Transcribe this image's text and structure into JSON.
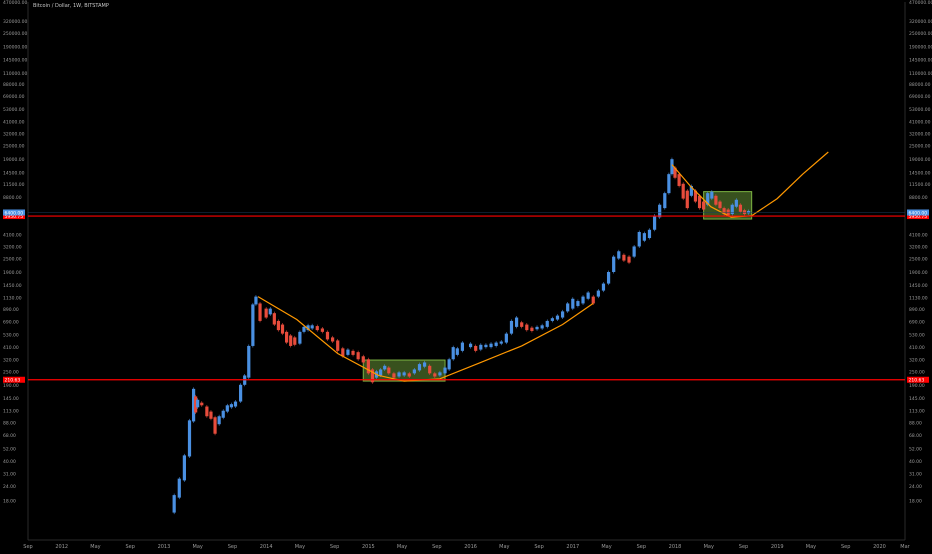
{
  "chart_data": {
    "type": "candlestick",
    "title": "Bitcoin / Dollar, 1W, BITSTAMP",
    "scale": "log",
    "ylim": [
      8,
      470000
    ],
    "y_ticks": [
      {
        "label": "470000.00",
        "value": 470000
      },
      {
        "label": "320000.00",
        "value": 320000
      },
      {
        "label": "250000.00",
        "value": 250000
      },
      {
        "label": "190000.00",
        "value": 190000
      },
      {
        "label": "145000.00",
        "value": 145000
      },
      {
        "label": "110000.00",
        "value": 110000
      },
      {
        "label": "88000.00",
        "value": 88000
      },
      {
        "label": "69000.00",
        "value": 69000
      },
      {
        "label": "53000.00",
        "value": 53000
      },
      {
        "label": "41000.00",
        "value": 41000
      },
      {
        "label": "32000.00",
        "value": 32000
      },
      {
        "label": "25000.00",
        "value": 25000
      },
      {
        "label": "19000.00",
        "value": 19000
      },
      {
        "label": "14500.00",
        "value": 14500
      },
      {
        "label": "11500.00",
        "value": 11500
      },
      {
        "label": "8800.00",
        "value": 8800
      },
      {
        "label": "4100.00",
        "value": 4100
      },
      {
        "label": "3200.00",
        "value": 3200
      },
      {
        "label": "2500.00",
        "value": 2500
      },
      {
        "label": "1900.00",
        "value": 1900
      },
      {
        "label": "1450.00",
        "value": 1450
      },
      {
        "label": "1130.00",
        "value": 1130
      },
      {
        "label": "890.00",
        "value": 890
      },
      {
        "label": "690.00",
        "value": 690
      },
      {
        "label": "530.00",
        "value": 530
      },
      {
        "label": "410.00",
        "value": 410
      },
      {
        "label": "320.00",
        "value": 320
      },
      {
        "label": "250.00",
        "value": 250
      },
      {
        "label": "190.00",
        "value": 190
      },
      {
        "label": "145.00",
        "value": 145
      },
      {
        "label": "113.00",
        "value": 113
      },
      {
        "label": "88.00",
        "value": 88
      },
      {
        "label": "68.00",
        "value": 68
      },
      {
        "label": "52.00",
        "value": 52
      },
      {
        "label": "40.00",
        "value": 40
      },
      {
        "label": "31.00",
        "value": 31
      },
      {
        "label": "24.00",
        "value": 24
      },
      {
        "label": "18.00",
        "value": 18
      }
    ],
    "x_ticks": [
      {
        "label": "Sep",
        "t": 2011.67
      },
      {
        "label": "2012",
        "t": 2012.0
      },
      {
        "label": "May",
        "t": 2012.33
      },
      {
        "label": "Sep",
        "t": 2012.67
      },
      {
        "label": "2013",
        "t": 2013.0
      },
      {
        "label": "May",
        "t": 2013.33
      },
      {
        "label": "Sep",
        "t": 2013.67
      },
      {
        "label": "2014",
        "t": 2014.0
      },
      {
        "label": "May",
        "t": 2014.33
      },
      {
        "label": "Sep",
        "t": 2014.67
      },
      {
        "label": "2015",
        "t": 2015.0
      },
      {
        "label": "May",
        "t": 2015.33
      },
      {
        "label": "Sep",
        "t": 2015.67
      },
      {
        "label": "2016",
        "t": 2016.0
      },
      {
        "label": "May",
        "t": 2016.33
      },
      {
        "label": "Sep",
        "t": 2016.67
      },
      {
        "label": "2017",
        "t": 2017.0
      },
      {
        "label": "May",
        "t": 2017.33
      },
      {
        "label": "Sep",
        "t": 2017.67
      },
      {
        "label": "2018",
        "t": 2018.0
      },
      {
        "label": "May",
        "t": 2018.33
      },
      {
        "label": "Sep",
        "t": 2018.67
      },
      {
        "label": "2019",
        "t": 2019.0
      },
      {
        "label": "May",
        "t": 2019.33
      },
      {
        "label": "Sep",
        "t": 2019.67
      },
      {
        "label": "2020",
        "t": 2020.0
      },
      {
        "label": "Mar",
        "t": 2020.25
      }
    ],
    "x_range": [
      2011.67,
      2020.25
    ],
    "horizontal_lines": [
      {
        "value": 5950.75,
        "label": "5950.75",
        "color": "#ff0000"
      },
      {
        "value": 210.63,
        "label": "210.63",
        "color": "#ff0000"
      }
    ],
    "current_price": {
      "value": 6400,
      "label": "6400.00",
      "color": "#4a90e2"
    },
    "rectangles": [
      {
        "x0": 2014.95,
        "x1": 2015.75,
        "y0": 205,
        "y1": 315,
        "color": "#7cb342"
      },
      {
        "x0": 2018.28,
        "x1": 2018.75,
        "y0": 5600,
        "y1": 9800,
        "color": "#7cb342"
      }
    ],
    "curves": [
      {
        "color": "#ff9800",
        "points": [
          [
            2013.92,
            1150
          ],
          [
            2014.3,
            720
          ],
          [
            2014.7,
            360
          ],
          [
            2015.1,
            230
          ],
          [
            2015.35,
            205
          ],
          [
            2015.7,
            215
          ],
          [
            2016.1,
            300
          ],
          [
            2016.5,
            420
          ],
          [
            2016.9,
            650
          ],
          [
            2017.2,
            1000
          ]
        ]
      },
      {
        "color": "#ff9800",
        "points": [
          [
            2017.97,
            17000
          ],
          [
            2018.15,
            11000
          ],
          [
            2018.35,
            7200
          ],
          [
            2018.55,
            5800
          ],
          [
            2018.75,
            6000
          ],
          [
            2019.0,
            8500
          ],
          [
            2019.25,
            14000
          ],
          [
            2019.5,
            22000
          ]
        ]
      }
    ],
    "price_series": [
      [
        2013.1,
        14,
        20
      ],
      [
        2013.15,
        19,
        28
      ],
      [
        2013.2,
        27,
        45
      ],
      [
        2013.25,
        44,
        92
      ],
      [
        2013.29,
        90,
        175
      ],
      [
        2013.31,
        108,
        150
      ],
      [
        2013.33,
        120,
        140
      ],
      [
        2013.37,
        125,
        132
      ],
      [
        2013.42,
        100,
        122
      ],
      [
        2013.46,
        95,
        110
      ],
      [
        2013.5,
        70,
        98
      ],
      [
        2013.54,
        85,
        100
      ],
      [
        2013.58,
        97,
        112
      ],
      [
        2013.62,
        110,
        125
      ],
      [
        2013.66,
        120,
        128
      ],
      [
        2013.7,
        122,
        135
      ],
      [
        2013.75,
        135,
        190
      ],
      [
        2013.79,
        190,
        230
      ],
      [
        2013.83,
        220,
        420
      ],
      [
        2013.87,
        420,
        980
      ],
      [
        2013.9,
        980,
        1150
      ],
      [
        2013.94,
        700,
        1000
      ],
      [
        2014.0,
        750,
        900
      ],
      [
        2014.04,
        800,
        900
      ],
      [
        2014.08,
        650,
        820
      ],
      [
        2014.12,
        580,
        700
      ],
      [
        2014.16,
        540,
        650
      ],
      [
        2014.2,
        450,
        560
      ],
      [
        2014.24,
        420,
        520
      ],
      [
        2014.28,
        430,
        500
      ],
      [
        2014.33,
        440,
        560
      ],
      [
        2014.37,
        560,
        620
      ],
      [
        2014.41,
        580,
        640
      ],
      [
        2014.45,
        600,
        640
      ],
      [
        2014.5,
        580,
        630
      ],
      [
        2014.55,
        560,
        600
      ],
      [
        2014.6,
        480,
        560
      ],
      [
        2014.65,
        460,
        500
      ],
      [
        2014.7,
        380,
        470
      ],
      [
        2014.75,
        340,
        400
      ],
      [
        2014.8,
        350,
        390
      ],
      [
        2014.85,
        350,
        380
      ],
      [
        2014.9,
        320,
        370
      ],
      [
        2014.95,
        300,
        340
      ],
      [
        2015.0,
        240,
        320
      ],
      [
        2015.04,
        200,
        260
      ],
      [
        2015.08,
        220,
        250
      ],
      [
        2015.12,
        230,
        260
      ],
      [
        2015.16,
        260,
        280
      ],
      [
        2015.2,
        240,
        270
      ],
      [
        2015.25,
        220,
        240
      ],
      [
        2015.3,
        225,
        245
      ],
      [
        2015.35,
        230,
        245
      ],
      [
        2015.4,
        225,
        240
      ],
      [
        2015.45,
        240,
        260
      ],
      [
        2015.5,
        255,
        290
      ],
      [
        2015.55,
        275,
        300
      ],
      [
        2015.6,
        240,
        280
      ],
      [
        2015.65,
        225,
        240
      ],
      [
        2015.7,
        230,
        245
      ],
      [
        2015.75,
        240,
        270
      ],
      [
        2015.79,
        260,
        320
      ],
      [
        2015.83,
        320,
        410
      ],
      [
        2015.87,
        350,
        400
      ],
      [
        2015.92,
        380,
        450
      ],
      [
        2016.0,
        410,
        440
      ],
      [
        2016.05,
        380,
        420
      ],
      [
        2016.1,
        390,
        430
      ],
      [
        2016.15,
        410,
        430
      ],
      [
        2016.2,
        410,
        440
      ],
      [
        2016.25,
        420,
        450
      ],
      [
        2016.3,
        440,
        460
      ],
      [
        2016.35,
        450,
        540
      ],
      [
        2016.4,
        540,
        700
      ],
      [
        2016.45,
        620,
        750
      ],
      [
        2016.5,
        620,
        680
      ],
      [
        2016.55,
        580,
        650
      ],
      [
        2016.6,
        570,
        610
      ],
      [
        2016.65,
        590,
        620
      ],
      [
        2016.7,
        600,
        640
      ],
      [
        2016.75,
        620,
        700
      ],
      [
        2016.8,
        700,
        740
      ],
      [
        2016.85,
        720,
        780
      ],
      [
        2016.9,
        750,
        850
      ],
      [
        2016.95,
        850,
        1000
      ],
      [
        2017.0,
        900,
        1100
      ],
      [
        2017.05,
        950,
        1050
      ],
      [
        2017.1,
        1000,
        1150
      ],
      [
        2017.15,
        1100,
        1250
      ],
      [
        2017.2,
        1000,
        1150
      ],
      [
        2017.25,
        1150,
        1300
      ],
      [
        2017.3,
        1300,
        1500
      ],
      [
        2017.35,
        1500,
        1900
      ],
      [
        2017.4,
        1900,
        2600
      ],
      [
        2017.45,
        2500,
        2900
      ],
      [
        2017.5,
        2400,
        2700
      ],
      [
        2017.55,
        2300,
        2600
      ],
      [
        2017.6,
        2600,
        3200
      ],
      [
        2017.65,
        3200,
        4300
      ],
      [
        2017.7,
        3600,
        4200
      ],
      [
        2017.75,
        3800,
        4500
      ],
      [
        2017.8,
        4500,
        6000
      ],
      [
        2017.85,
        5800,
        7500
      ],
      [
        2017.9,
        7000,
        9500
      ],
      [
        2017.94,
        9500,
        14000
      ],
      [
        2017.97,
        14000,
        19000
      ],
      [
        2018.0,
        13000,
        16000
      ],
      [
        2018.04,
        11000,
        14000
      ],
      [
        2018.08,
        8500,
        11500
      ],
      [
        2018.12,
        7000,
        10000
      ],
      [
        2018.16,
        9000,
        11000
      ],
      [
        2018.2,
        8000,
        10000
      ],
      [
        2018.24,
        7000,
        9000
      ],
      [
        2018.28,
        6800,
        8000
      ],
      [
        2018.32,
        7500,
        9500
      ],
      [
        2018.36,
        8500,
        9800
      ],
      [
        2018.4,
        7500,
        9000
      ],
      [
        2018.44,
        7000,
        8000
      ],
      [
        2018.48,
        6200,
        7000
      ],
      [
        2018.52,
        6000,
        6800
      ],
      [
        2018.56,
        6200,
        7500
      ],
      [
        2018.6,
        7200,
        8300
      ],
      [
        2018.64,
        6500,
        7500
      ],
      [
        2018.68,
        6200,
        6700
      ],
      [
        2018.72,
        6300,
        6600
      ]
    ]
  }
}
